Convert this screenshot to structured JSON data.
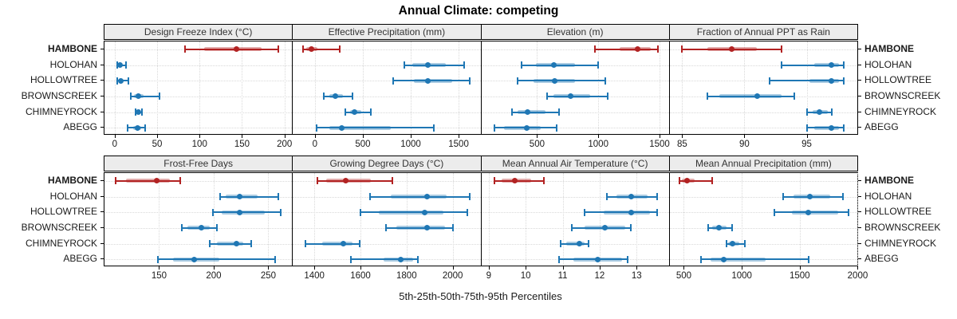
{
  "title": "Annual Climate: competing",
  "caption": "5th-25th-50th-75th-95th Percentiles",
  "sites": [
    "HAMBONE",
    "HOLOHAN",
    "HOLLOWTREE",
    "BROWNSCREEK",
    "CHIMNEYROCK",
    "ABEGG"
  ],
  "highlighted_site": "HAMBONE",
  "colors": {
    "highlight": "#B22222",
    "default": "#1F77B4",
    "strip_bg": "#ECECEC",
    "grid": "#D9D9D9",
    "border": "#000000"
  },
  "percentile_labels": [
    "5th",
    "25th",
    "50th",
    "75th",
    "95th"
  ],
  "chart_data": [
    {
      "type": "dotplot-percentile",
      "title": "Design Freeze Index (°C)",
      "xlim": [
        -12,
        208
      ],
      "ticks": [
        0,
        50,
        100,
        150,
        200
      ],
      "grid": true,
      "series": [
        {
          "name": "HAMBONE",
          "values": [
            83,
            105,
            143,
            173,
            193
          ]
        },
        {
          "name": "HOLOHAN",
          "values": [
            3,
            4,
            6,
            8,
            13
          ]
        },
        {
          "name": "HOLLOWTREE",
          "values": [
            3,
            5,
            7,
            10,
            16
          ]
        },
        {
          "name": "BROWNSCREEK",
          "values": [
            19,
            23,
            28,
            34,
            53
          ]
        },
        {
          "name": "CHIMNEYROCK",
          "values": [
            25,
            27,
            28,
            30,
            32
          ]
        },
        {
          "name": "ABEGG",
          "values": [
            15,
            22,
            27,
            31,
            36
          ]
        }
      ]
    },
    {
      "type": "dotplot-percentile",
      "title": "Effective Precipitation (mm)",
      "xlim": [
        -230,
        1720
      ],
      "ticks": [
        0,
        500,
        1000,
        1500
      ],
      "grid": true,
      "series": [
        {
          "name": "HAMBONE",
          "values": [
            -120,
            -90,
            -35,
            25,
            255
          ]
        },
        {
          "name": "HOLOHAN",
          "values": [
            930,
            1020,
            1180,
            1370,
            1560
          ]
        },
        {
          "name": "HOLLOWTREE",
          "values": [
            820,
            1030,
            1175,
            1430,
            1620
          ]
        },
        {
          "name": "BROWNSCREEK",
          "values": [
            90,
            150,
            215,
            295,
            395
          ]
        },
        {
          "name": "CHIMNEYROCK",
          "values": [
            315,
            365,
            415,
            480,
            585
          ]
        },
        {
          "name": "ABEGG",
          "values": [
            15,
            150,
            280,
            795,
            1245
          ]
        }
      ]
    },
    {
      "type": "dotplot-percentile",
      "title": "Elevation (m)",
      "xlim": [
        45,
        1570
      ],
      "ticks": [
        500,
        1000,
        1500
      ],
      "grid": true,
      "series": [
        {
          "name": "HAMBONE",
          "values": [
            970,
            1175,
            1320,
            1430,
            1490
          ]
        },
        {
          "name": "HOLOHAN",
          "values": [
            375,
            490,
            635,
            810,
            1000
          ]
        },
        {
          "name": "HOLLOWTREE",
          "values": [
            340,
            470,
            645,
            810,
            1060
          ]
        },
        {
          "name": "BROWNSCREEK",
          "values": [
            585,
            635,
            775,
            935,
            1080
          ]
        },
        {
          "name": "CHIMNEYROCK",
          "values": [
            295,
            340,
            425,
            570,
            680
          ]
        },
        {
          "name": "ABEGG",
          "values": [
            150,
            230,
            415,
            530,
            660
          ]
        }
      ]
    },
    {
      "type": "dotplot-percentile",
      "title": "Fraction of Annual PPT as Rain",
      "xlim": [
        84,
        99
      ],
      "ticks": [
        85,
        90,
        95
      ],
      "grid": true,
      "series": [
        {
          "name": "HAMBONE",
          "values": [
            85,
            87,
            89,
            91,
            93
          ]
        },
        {
          "name": "HOLOHAN",
          "values": [
            93,
            95.6,
            97,
            97.6,
            98
          ]
        },
        {
          "name": "HOLLOWTREE",
          "values": [
            92,
            95.2,
            97,
            97.6,
            98
          ]
        },
        {
          "name": "BROWNSCREEK",
          "values": [
            87,
            88,
            91,
            93,
            94
          ]
        },
        {
          "name": "CHIMNEYROCK",
          "values": [
            95,
            95.5,
            96,
            96.7,
            97
          ]
        },
        {
          "name": "ABEGG",
          "values": [
            95,
            95.6,
            97,
            97.6,
            98
          ]
        }
      ]
    },
    {
      "type": "dotplot-percentile",
      "title": "Frost-Free Days",
      "xlim": [
        100,
        271
      ],
      "ticks": [
        150,
        200,
        250
      ],
      "grid": true,
      "series": [
        {
          "name": "HAMBONE",
          "values": [
            110,
            120,
            148,
            160,
            169
          ]
        },
        {
          "name": "HOLOHAN",
          "values": [
            206,
            211,
            224,
            240,
            259
          ]
        },
        {
          "name": "HOLLOWTREE",
          "values": [
            199,
            207,
            224,
            247,
            261
          ]
        },
        {
          "name": "BROWNSCREEK",
          "values": [
            171,
            176,
            189,
            196,
            203
          ]
        },
        {
          "name": "CHIMNEYROCK",
          "values": [
            196,
            203,
            221,
            227,
            234
          ]
        },
        {
          "name": "ABEGG",
          "values": [
            149,
            163,
            182,
            205,
            256
          ]
        }
      ]
    },
    {
      "type": "dotplot-percentile",
      "title": "Growing Degree Days (°C)",
      "xlim": [
        1307,
        2117
      ],
      "ticks": [
        1400,
        1600,
        1800,
        2000
      ],
      "grid": true,
      "series": [
        {
          "name": "HAMBONE",
          "values": [
            1415,
            1450,
            1535,
            1645,
            1740
          ]
        },
        {
          "name": "HOLOHAN",
          "values": [
            1640,
            1730,
            1890,
            1975,
            2075
          ]
        },
        {
          "name": "HOLLOWTREE",
          "values": [
            1600,
            1680,
            1880,
            1960,
            2065
          ]
        },
        {
          "name": "BROWNSCREEK",
          "values": [
            1710,
            1755,
            1890,
            1965,
            2000
          ]
        },
        {
          "name": "CHIMNEYROCK",
          "values": [
            1360,
            1435,
            1525,
            1565,
            1595
          ]
        },
        {
          "name": "ABEGG",
          "values": [
            1560,
            1700,
            1775,
            1828,
            1848
          ]
        }
      ]
    },
    {
      "type": "dotplot-percentile",
      "title": "Mean Annual Air Temperature (°C)",
      "xlim": [
        8.8,
        13.85
      ],
      "ticks": [
        9,
        10,
        11,
        12,
        13
      ],
      "grid": true,
      "series": [
        {
          "name": "HAMBONE",
          "values": [
            9.15,
            9.35,
            9.7,
            10.15,
            10.5
          ]
        },
        {
          "name": "HOLOHAN",
          "values": [
            12.2,
            12.45,
            12.85,
            13.3,
            13.55
          ]
        },
        {
          "name": "HOLLOWTREE",
          "values": [
            11.6,
            12.1,
            12.85,
            13.35,
            13.55
          ]
        },
        {
          "name": "BROWNSCREEK",
          "values": [
            11.25,
            11.6,
            12.15,
            12.7,
            12.85
          ]
        },
        {
          "name": "CHIMNEYROCK",
          "values": [
            10.95,
            11.1,
            11.45,
            11.6,
            11.7
          ]
        },
        {
          "name": "ABEGG",
          "values": [
            10.9,
            11.3,
            11.95,
            12.6,
            12.75
          ]
        }
      ]
    },
    {
      "type": "dotplot-percentile",
      "title": "Mean Annual Precipitation (mm)",
      "xlim": [
        378,
        1990
      ],
      "ticks": [
        500,
        1000,
        1500,
        2000
      ],
      "grid": true,
      "series": [
        {
          "name": "HAMBONE",
          "values": [
            465,
            480,
            525,
            595,
            745
          ]
        },
        {
          "name": "HOLOHAN",
          "values": [
            1360,
            1445,
            1590,
            1760,
            1875
          ]
        },
        {
          "name": "HOLLOWTREE",
          "values": [
            1280,
            1430,
            1575,
            1830,
            1920
          ]
        },
        {
          "name": "BROWNSCREEK",
          "values": [
            710,
            745,
            800,
            865,
            915
          ]
        },
        {
          "name": "CHIMNEYROCK",
          "values": [
            865,
            885,
            920,
            975,
            1030
          ]
        },
        {
          "name": "ABEGG",
          "values": [
            650,
            730,
            845,
            1205,
            1580
          ]
        }
      ]
    }
  ]
}
